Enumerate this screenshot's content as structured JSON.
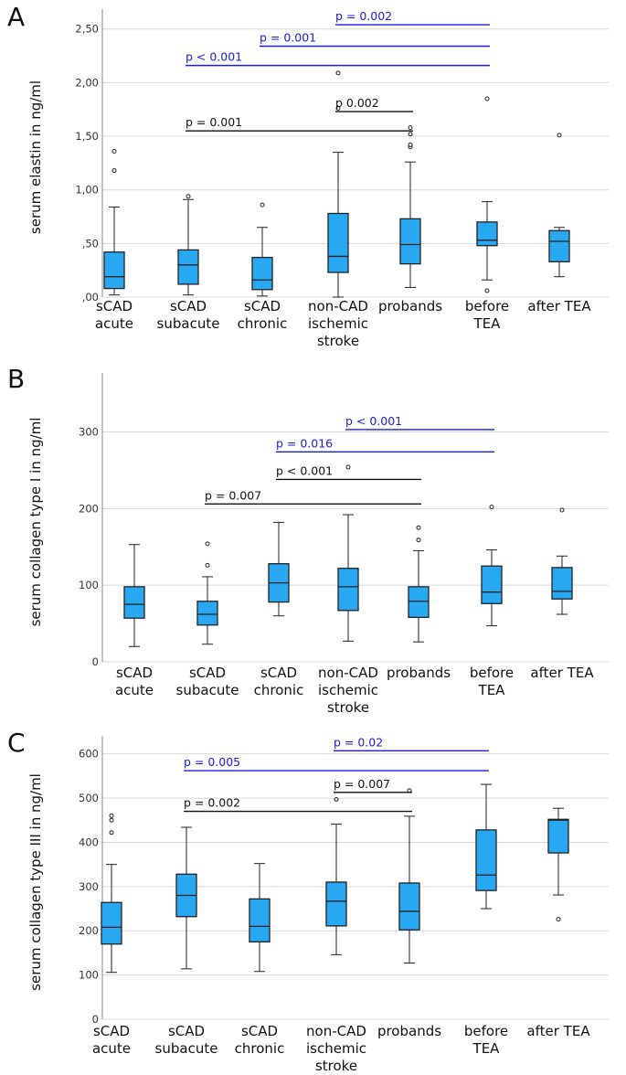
{
  "chart_data": [
    {
      "type": "boxplot",
      "panel_label": "A",
      "ylabel": "serum elastin in ng/ml",
      "ylim": [
        0,
        2.6
      ],
      "yticks": [
        0,
        0.5,
        1.0,
        1.5,
        2.0,
        2.5
      ],
      "ytick_labels": [
        ",00",
        ",50",
        "1,00",
        "1,50",
        "2,00",
        "2,50"
      ],
      "categories": [
        [
          "sCAD",
          "acute"
        ],
        [
          "sCAD",
          "subacute"
        ],
        [
          "sCAD",
          "chronic"
        ],
        [
          "non-CAD",
          "ischemic",
          "stroke"
        ],
        [
          "probands"
        ],
        [
          "before",
          "TEA"
        ],
        [
          "after TEA"
        ]
      ],
      "boxes": [
        {
          "min": 0.02,
          "q1": 0.08,
          "median": 0.19,
          "q3": 0.42,
          "max": 0.84,
          "outliers": [
            1.18,
            1.36
          ]
        },
        {
          "min": 0.02,
          "q1": 0.12,
          "median": 0.3,
          "q3": 0.44,
          "max": 0.91,
          "outliers": [
            0.94
          ]
        },
        {
          "min": 0.01,
          "q1": 0.07,
          "median": 0.16,
          "q3": 0.37,
          "max": 0.65,
          "outliers": [
            0.86
          ]
        },
        {
          "min": 0.0,
          "q1": 0.23,
          "median": 0.38,
          "q3": 0.78,
          "max": 1.35,
          "outliers": [
            1.76,
            2.09
          ]
        },
        {
          "min": 0.09,
          "q1": 0.31,
          "median": 0.49,
          "q3": 0.73,
          "max": 1.26,
          "outliers": [
            1.4,
            1.42,
            1.52,
            1.58
          ]
        },
        {
          "min": 0.16,
          "q1": 0.48,
          "median": 0.53,
          "q3": 0.7,
          "max": 0.89,
          "outliers": [
            0.06,
            1.85
          ]
        },
        {
          "min": 0.19,
          "q1": 0.33,
          "median": 0.52,
          "q3": 0.62,
          "max": 0.65,
          "outliers": [
            1.51
          ]
        }
      ],
      "significance": [
        {
          "text": "p = 0.002",
          "from": 3,
          "to": 5,
          "y": 2.54,
          "color": "#1a1ae6"
        },
        {
          "text": "p = 0.001",
          "from": 2,
          "to": 5,
          "y": 2.34,
          "color": "#1a1ae6"
        },
        {
          "text": "p < 0.001",
          "from": 1,
          "to": 5,
          "y": 2.16,
          "color": "#1a1ae6"
        },
        {
          "text": "p 0.002",
          "from": 3,
          "to": 4,
          "y": 1.73,
          "color": "#111111"
        },
        {
          "text": "p = 0.001",
          "from": 1,
          "to": 4,
          "y": 1.55,
          "color": "#111111"
        }
      ]
    },
    {
      "type": "boxplot",
      "panel_label": "B",
      "ylabel": "serum collagen type I in ng/ml",
      "ylim": [
        0,
        365
      ],
      "yticks": [
        0,
        100,
        200,
        300
      ],
      "ytick_labels": [
        "0",
        "100",
        "200",
        "300"
      ],
      "categories": [
        [
          "sCAD",
          "acute"
        ],
        [
          "sCAD",
          "subacute"
        ],
        [
          "sCAD",
          "chronic"
        ],
        [
          "non-CAD",
          "ischemic",
          "stroke"
        ],
        [
          "probands"
        ],
        [
          "before",
          "TEA"
        ],
        [
          "after TEA"
        ]
      ],
      "boxes": [
        {
          "min": 20,
          "q1": 57,
          "median": 75,
          "q3": 98,
          "max": 153,
          "outliers": []
        },
        {
          "min": 23,
          "q1": 48,
          "median": 62,
          "q3": 79,
          "max": 111,
          "outliers": [
            126,
            154
          ]
        },
        {
          "min": 60,
          "q1": 78,
          "median": 103,
          "q3": 128,
          "max": 182,
          "outliers": []
        },
        {
          "min": 27,
          "q1": 67,
          "median": 98,
          "q3": 122,
          "max": 192,
          "outliers": [
            254
          ]
        },
        {
          "min": 26,
          "q1": 58,
          "median": 79,
          "q3": 98,
          "max": 145,
          "outliers": [
            159,
            175
          ]
        },
        {
          "min": 47,
          "q1": 76,
          "median": 91,
          "q3": 125,
          "max": 146,
          "outliers": [
            202
          ]
        },
        {
          "min": 62,
          "q1": 82,
          "median": 92,
          "q3": 123,
          "max": 138,
          "outliers": [
            198
          ]
        }
      ],
      "significance": [
        {
          "text": "p < 0.001",
          "from": 3,
          "to": 5,
          "y": 303,
          "color": "#1a1ae6"
        },
        {
          "text": "p = 0.016",
          "from": 2,
          "to": 5,
          "y": 274,
          "color": "#1a1ae6"
        },
        {
          "text": "p < 0.001",
          "from": 2,
          "to": 4,
          "y": 238,
          "color": "#111111"
        },
        {
          "text": "p = 0.007",
          "from": 1,
          "to": 4,
          "y": 206,
          "color": "#111111"
        }
      ]
    },
    {
      "type": "boxplot",
      "panel_label": "C",
      "ylabel": "serum collagen type III in ng/ml",
      "ylim": [
        0,
        620
      ],
      "yticks": [
        0,
        100,
        200,
        300,
        400,
        500,
        600
      ],
      "ytick_labels": [
        "0",
        "100",
        "200",
        "300",
        "400",
        "500",
        "600"
      ],
      "categories": [
        [
          "sCAD",
          "acute"
        ],
        [
          "sCAD",
          "subacute"
        ],
        [
          "sCAD",
          "chronic"
        ],
        [
          "non-CAD",
          "ischemic",
          "stroke"
        ],
        [
          "probands"
        ],
        [
          "before",
          "TEA"
        ],
        [
          "after TEA"
        ]
      ],
      "boxes": [
        {
          "min": 106,
          "q1": 170,
          "median": 208,
          "q3": 264,
          "max": 350,
          "outliers": [
            422,
            450,
            460
          ]
        },
        {
          "min": 114,
          "q1": 232,
          "median": 280,
          "q3": 328,
          "max": 434,
          "outliers": []
        },
        {
          "min": 108,
          "q1": 175,
          "median": 210,
          "q3": 272,
          "max": 352,
          "outliers": []
        },
        {
          "min": 146,
          "q1": 211,
          "median": 267,
          "q3": 310,
          "max": 441,
          "outliers": [
            497
          ]
        },
        {
          "min": 127,
          "q1": 202,
          "median": 244,
          "q3": 308,
          "max": 459,
          "outliers": [
            517
          ]
        },
        {
          "min": 250,
          "q1": 291,
          "median": 326,
          "q3": 428,
          "max": 531,
          "outliers": []
        },
        {
          "min": 281,
          "q1": 376,
          "median": 450,
          "q3": 452,
          "max": 477,
          "outliers": [
            226
          ]
        }
      ],
      "significance": [
        {
          "text": "p = 0.02",
          "from": 3,
          "to": 5,
          "y": 607,
          "color": "#1a1ae6"
        },
        {
          "text": "p = 0.005",
          "from": 1,
          "to": 5,
          "y": 562,
          "color": "#1a1ae6"
        },
        {
          "text": "p = 0.007",
          "from": 3,
          "to": 4,
          "y": 513,
          "color": "#111111"
        },
        {
          "text": "p = 0.002",
          "from": 1,
          "to": 4,
          "y": 470,
          "color": "#111111"
        }
      ]
    }
  ]
}
